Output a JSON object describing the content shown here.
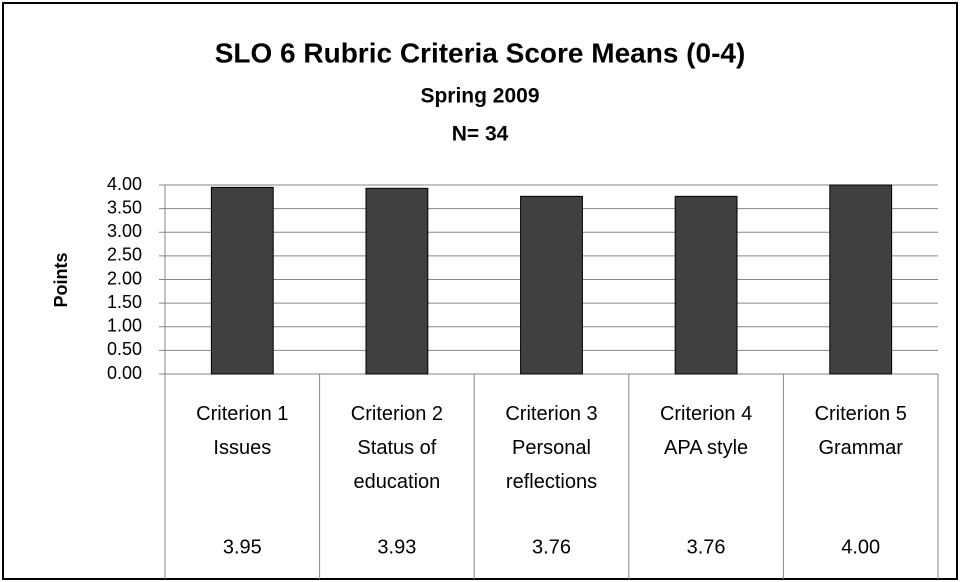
{
  "chart_data": {
    "type": "bar",
    "title": "SLO 6 Rubric Criteria Score Means (0-4)",
    "subtitles": [
      "Spring 2009",
      "N= 34"
    ],
    "y_label": "Points",
    "categories": [
      "Criterion 1\nIssues",
      "Criterion 2\nStatus of\neducation",
      "Criterion 3\nPersonal\nreflections",
      "Criterion 4\nAPA style",
      "Criterion 5\nGrammar"
    ],
    "values": [
      3.95,
      3.93,
      3.76,
      3.76,
      4
    ],
    "value_labels": [
      "3.95",
      "3.93",
      "3.76",
      "3.76",
      "4.00"
    ],
    "color": "#404040",
    "ylim": [
      0,
      4
    ],
    "yticks": [
      {
        "value": 0,
        "label": "0.00"
      },
      {
        "value": 0.5,
        "label": "0.50"
      },
      {
        "value": 1,
        "label": "1.00"
      },
      {
        "value": 1.5,
        "label": "1.50"
      },
      {
        "value": 2,
        "label": "2.00"
      },
      {
        "value": 2.5,
        "label": "2.50"
      },
      {
        "value": 3,
        "label": "3.00"
      },
      {
        "value": 3.5,
        "label": "3.50"
      },
      {
        "value": 4,
        "label": "4.00"
      }
    ],
    "grid": true
  }
}
